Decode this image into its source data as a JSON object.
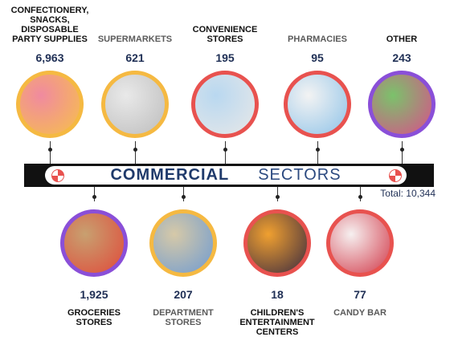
{
  "banner": {
    "title_bold": "COMMERCIAL",
    "title_light": "SECTORS"
  },
  "total": "Total: 10,344",
  "top": [
    {
      "name_lines": [
        "CONFECTIONERY,",
        "SNACKS,",
        "DISPOSABLE",
        "PARTY SUPPLIES"
      ],
      "count": "6,963"
    },
    {
      "name_lines": [
        "SUPERMARKETS"
      ],
      "count": "621"
    },
    {
      "name_lines": [
        "CONVENIENCE",
        "STORES"
      ],
      "count": "195"
    },
    {
      "name_lines": [
        "PHARMACIES"
      ],
      "count": "95"
    },
    {
      "name_lines": [
        "OTHER"
      ],
      "count": "243"
    }
  ],
  "bottom": [
    {
      "name_lines": [
        "GROCERIES",
        "STORES"
      ],
      "count": "1,925"
    },
    {
      "name_lines": [
        "DEPARTMENT",
        "STORES"
      ],
      "count": "207"
    },
    {
      "name_lines": [
        "CHILDREN'S",
        "ENTERTAINMENT",
        "CENTERS"
      ],
      "count": "18"
    },
    {
      "name_lines": [
        "CANDY BAR"
      ],
      "count": "77"
    }
  ]
}
